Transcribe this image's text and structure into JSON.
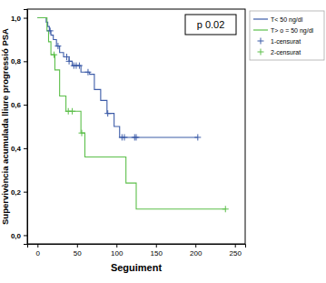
{
  "chart_data": {
    "type": "step",
    "x_label": "Seguiment",
    "y_label": "Supervivència acumulada lliure progressió PSA",
    "annotation": "p 0.02",
    "xlim": [
      -13,
      263
    ],
    "ylim": [
      -0.04,
      1.04
    ],
    "xticks": [
      0,
      50,
      100,
      150,
      200,
      250
    ],
    "yticks": [
      {
        "value": 0,
        "label": "0,0"
      },
      {
        "value": 0.2,
        "label": "0,2"
      },
      {
        "value": 0.4,
        "label": "0,4"
      },
      {
        "value": 0.6,
        "label": "0,6"
      },
      {
        "value": 0.8,
        "label": "0,8"
      },
      {
        "value": 1,
        "label": "1,0"
      }
    ],
    "grid": false,
    "legend": "outside-right",
    "series": [
      {
        "name": "T< 50 ng/dl",
        "type": "step",
        "color": "#3d5ca8",
        "line_style": "solid",
        "x": [
          0,
          11,
          13,
          15,
          17,
          20,
          24,
          28,
          33,
          40,
          44,
          55,
          66,
          72,
          80,
          88,
          97,
          104,
          203
        ],
        "values": [
          1,
          0.98,
          0.96,
          0.94,
          0.92,
          0.9,
          0.87,
          0.84,
          0.82,
          0.8,
          0.78,
          0.75,
          0.74,
          0.67,
          0.62,
          0.56,
          0.5,
          0.45,
          0.45
        ]
      },
      {
        "name": "T> o = 50 ng/dl",
        "type": "step",
        "color": "#5cbf4a",
        "line_style": "solid",
        "x": [
          0,
          12,
          14,
          17,
          22,
          28,
          36,
          55,
          60,
          112,
          125,
          238
        ],
        "values": [
          1,
          0.94,
          0.89,
          0.83,
          0.76,
          0.64,
          0.57,
          0.47,
          0.36,
          0.24,
          0.12,
          0.12
        ]
      },
      {
        "name": "1-censurat",
        "type": "scatter",
        "color": "#3d5ca8",
        "marker": "plus",
        "x": [
          16,
          26,
          37,
          40,
          46,
          49,
          53,
          64,
          89,
          107,
          110,
          123,
          125,
          203
        ],
        "values": [
          0.94,
          0.87,
          0.82,
          0.8,
          0.78,
          0.78,
          0.78,
          0.75,
          0.56,
          0.45,
          0.45,
          0.45,
          0.45,
          0.45
        ]
      },
      {
        "name": "2-censurat",
        "type": "scatter",
        "color": "#5cbf4a",
        "marker": "plus",
        "x": [
          21,
          39,
          44,
          56,
          238
        ],
        "values": [
          0.83,
          0.57,
          0.57,
          0.47,
          0.12
        ]
      }
    ]
  }
}
